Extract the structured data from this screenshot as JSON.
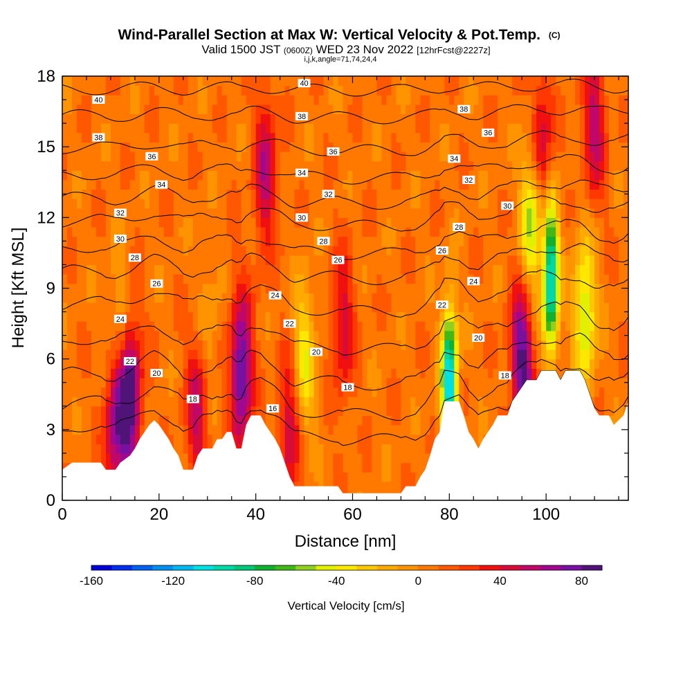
{
  "chart_data": {
    "type": "heatmap",
    "title": "Wind-Parallel Section at Max W: Vertical Velocity & Pot.Temp.",
    "title_mark": "(C)",
    "subtitle_parts": [
      "Valid 1500 JST ",
      "(0600Z)",
      " WED 23 Nov 2022 ",
      "[12hrFcst@2227z]"
    ],
    "subtitle2": "i,j,k,angle=71,74,24,4",
    "xlabel": "Distance [nm]",
    "ylabel": "Height [Kft MSL]",
    "xlim": [
      0,
      117
    ],
    "ylim": [
      0,
      18
    ],
    "xticks": [
      0,
      20,
      40,
      60,
      80,
      100
    ],
    "yticks": [
      0,
      3,
      6,
      9,
      12,
      15,
      18
    ],
    "colorbar": {
      "label": "Vertical Velocity [cm/s]",
      "range": [
        -160,
        90
      ],
      "ticks": [
        -160,
        -120,
        -80,
        -40,
        0,
        40,
        80
      ],
      "colors": [
        "#0000d8",
        "#0030ee",
        "#0060f0",
        "#0090f0",
        "#00b8f0",
        "#00e0e0",
        "#00d8a8",
        "#00c878",
        "#10b030",
        "#40b818",
        "#90d020",
        "#e0f000",
        "#ffe800",
        "#ffc800",
        "#ffaa00",
        "#ff9400",
        "#ff7800",
        "#ff5800",
        "#ff3800",
        "#f01010",
        "#d80c38",
        "#c00868",
        "#a00890",
        "#7810a0",
        "#501478"
      ]
    },
    "terrain_kft": [
      [
        0,
        1.3
      ],
      [
        2,
        1.6
      ],
      [
        5,
        1.6
      ],
      [
        8,
        1.6
      ],
      [
        9,
        1.3
      ],
      [
        11,
        1.3
      ],
      [
        12,
        1.6
      ],
      [
        14,
        1.9
      ],
      [
        15,
        2.2
      ],
      [
        16,
        2.6
      ],
      [
        17,
        2.9
      ],
      [
        18,
        3.2
      ],
      [
        19,
        3.4
      ],
      [
        20,
        3.2
      ],
      [
        21,
        2.9
      ],
      [
        22,
        2.6
      ],
      [
        23,
        2.2
      ],
      [
        24,
        1.9
      ],
      [
        25,
        1.3
      ],
      [
        27,
        1.3
      ],
      [
        28,
        1.9
      ],
      [
        29,
        2.2
      ],
      [
        31,
        2.2
      ],
      [
        32,
        2.6
      ],
      [
        33,
        2.6
      ],
      [
        34,
        2.9
      ],
      [
        35,
        2.9
      ],
      [
        36,
        2.2
      ],
      [
        37,
        2.2
      ],
      [
        38,
        3.2
      ],
      [
        39,
        3.6
      ],
      [
        41,
        3.6
      ],
      [
        42,
        3.2
      ],
      [
        43,
        2.9
      ],
      [
        44,
        2.6
      ],
      [
        45,
        2.2
      ],
      [
        46,
        1.6
      ],
      [
        47,
        1.0
      ],
      [
        48,
        0.6
      ],
      [
        50,
        0.6
      ],
      [
        53,
        0.6
      ],
      [
        55,
        0.6
      ],
      [
        57,
        0.6
      ],
      [
        58,
        0.3
      ],
      [
        62,
        0.3
      ],
      [
        66,
        0.3
      ],
      [
        70,
        0.3
      ],
      [
        71,
        0.6
      ],
      [
        73,
        0.6
      ],
      [
        74,
        1.0
      ],
      [
        75,
        1.3
      ],
      [
        76,
        1.9
      ],
      [
        77,
        2.6
      ],
      [
        78,
        2.9
      ],
      [
        79,
        4.2
      ],
      [
        82,
        4.2
      ],
      [
        83,
        3.6
      ],
      [
        84,
        2.9
      ],
      [
        85,
        2.6
      ],
      [
        86,
        2.2
      ],
      [
        87,
        2.6
      ],
      [
        88,
        2.9
      ],
      [
        89,
        3.2
      ],
      [
        90,
        3.6
      ],
      [
        92,
        3.6
      ],
      [
        93,
        4.2
      ],
      [
        94,
        4.5
      ],
      [
        95,
        4.8
      ],
      [
        96,
        5.1
      ],
      [
        98,
        5.1
      ],
      [
        99,
        5.5
      ],
      [
        102,
        5.5
      ],
      [
        103,
        5.1
      ],
      [
        104,
        5.5
      ],
      [
        107,
        5.5
      ],
      [
        108,
        5.1
      ],
      [
        109,
        4.5
      ],
      [
        110,
        3.9
      ],
      [
        111,
        3.6
      ],
      [
        113,
        3.6
      ],
      [
        114,
        3.2
      ],
      [
        116,
        3.6
      ],
      [
        117,
        4.2
      ]
    ],
    "w_features_cm_s": [
      {
        "x": 14,
        "z": 4.5,
        "w": 85
      },
      {
        "x": 11,
        "z": 3.0,
        "w": 60
      },
      {
        "x": 37,
        "z": 5.5,
        "w": 80
      },
      {
        "x": 28,
        "z": 4.0,
        "w": 50
      },
      {
        "x": 42,
        "z": 14,
        "w": 50
      },
      {
        "x": 47,
        "z": 3.0,
        "w": 45
      },
      {
        "x": 58,
        "z": 7.5,
        "w": 40
      },
      {
        "x": 95,
        "z": 6.0,
        "w": 80
      },
      {
        "x": 99,
        "z": 15,
        "w": 50
      },
      {
        "x": 110,
        "z": 16,
        "w": 50
      },
      {
        "x": 80,
        "z": 5.0,
        "w": -120
      },
      {
        "x": 101,
        "z": 9.5,
        "w": -115
      },
      {
        "x": 97,
        "z": 12,
        "w": -65
      },
      {
        "x": 108,
        "z": 8.0,
        "w": -60
      },
      {
        "x": 50,
        "z": 6.0,
        "w": -45
      },
      {
        "x": 12,
        "z": 7.5,
        "w": -25
      },
      {
        "x": 30,
        "z": 7.0,
        "w": -20
      }
    ],
    "theta_levels": [
      {
        "v": 16,
        "zs": 3.6
      },
      {
        "v": 18,
        "zs": 4.6
      },
      {
        "v": 20,
        "zs": 5.8
      },
      {
        "v": 22,
        "zs": 7.2
      },
      {
        "v": 24,
        "zs": 8.7
      },
      {
        "v": 26,
        "zs": 10.0
      },
      {
        "v": 28,
        "zs": 11.0
      },
      {
        "v": 30,
        "zs": 12.1
      },
      {
        "v": 32,
        "zs": 13.0
      },
      {
        "v": 34,
        "zs": 14.0
      },
      {
        "v": 36,
        "zs": 15.1
      },
      {
        "v": 38,
        "zs": 16.4
      },
      {
        "v": 40,
        "zs": 17.5
      }
    ],
    "contour_labels": [
      {
        "text": "40",
        "x": 7.5,
        "z": 17.0
      },
      {
        "text": "40",
        "x": 50,
        "z": 17.7
      },
      {
        "text": "38",
        "x": 7.5,
        "z": 15.4
      },
      {
        "text": "38",
        "x": 49.5,
        "z": 16.3
      },
      {
        "text": "38",
        "x": 83,
        "z": 16.6
      },
      {
        "text": "36",
        "x": 18.5,
        "z": 14.6
      },
      {
        "text": "36",
        "x": 56,
        "z": 14.8
      },
      {
        "text": "36",
        "x": 88,
        "z": 15.6
      },
      {
        "text": "34",
        "x": 20.5,
        "z": 13.4
      },
      {
        "text": "34",
        "x": 49.5,
        "z": 13.9
      },
      {
        "text": "34",
        "x": 81,
        "z": 14.5
      },
      {
        "text": "32",
        "x": 12,
        "z": 12.2
      },
      {
        "text": "32",
        "x": 55,
        "z": 13.0
      },
      {
        "text": "32",
        "x": 84,
        "z": 13.6
      },
      {
        "text": "30",
        "x": 12,
        "z": 11.1
      },
      {
        "text": "30",
        "x": 49.5,
        "z": 12.0
      },
      {
        "text": "30",
        "x": 92,
        "z": 12.5
      },
      {
        "text": "28",
        "x": 15,
        "z": 10.3
      },
      {
        "text": "28",
        "x": 54,
        "z": 11.0
      },
      {
        "text": "28",
        "x": 82,
        "z": 11.6
      },
      {
        "text": "26",
        "x": 19.5,
        "z": 9.2
      },
      {
        "text": "26",
        "x": 57,
        "z": 10.2
      },
      {
        "text": "26",
        "x": 78.5,
        "z": 10.6
      },
      {
        "text": "24",
        "x": 12,
        "z": 7.7
      },
      {
        "text": "24",
        "x": 44,
        "z": 8.7
      },
      {
        "text": "24",
        "x": 85,
        "z": 9.3
      },
      {
        "text": "22",
        "x": 14,
        "z": 5.9
      },
      {
        "text": "22",
        "x": 47,
        "z": 7.5
      },
      {
        "text": "22",
        "x": 78.5,
        "z": 8.3
      },
      {
        "text": "20",
        "x": 19.5,
        "z": 5.4
      },
      {
        "text": "20",
        "x": 52.5,
        "z": 6.3
      },
      {
        "text": "20",
        "x": 86,
        "z": 6.9
      },
      {
        "text": "18",
        "x": 27,
        "z": 4.3
      },
      {
        "text": "18",
        "x": 59,
        "z": 4.8
      },
      {
        "text": "18",
        "x": 91.5,
        "z": 5.3
      },
      {
        "text": "16",
        "x": 43.5,
        "z": 3.9
      }
    ]
  }
}
